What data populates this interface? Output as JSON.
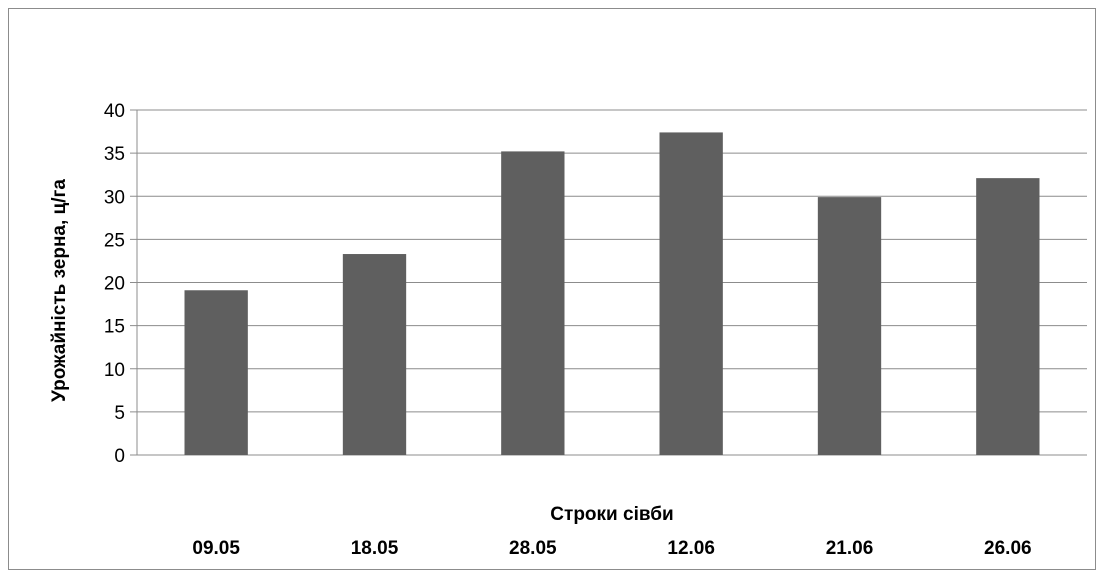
{
  "chart_data": {
    "type": "bar",
    "categories": [
      "09.05",
      "18.05",
      "28.05",
      "12.06",
      "21.06",
      "26.06"
    ],
    "values": [
      19.1,
      23.3,
      35.2,
      37.4,
      29.9,
      32.1
    ],
    "xlabel": "Строки сівби",
    "ylabel": "Урожайність зерна, ц/га",
    "ylim": [
      0,
      40
    ],
    "yticks": [
      0,
      5,
      10,
      15,
      20,
      25,
      30,
      35,
      40
    ],
    "grid": true,
    "legend": "none",
    "colors": {
      "bar": "#5f5f5f",
      "grid": "#8c8c8c",
      "border": "#8c8c8c"
    }
  }
}
